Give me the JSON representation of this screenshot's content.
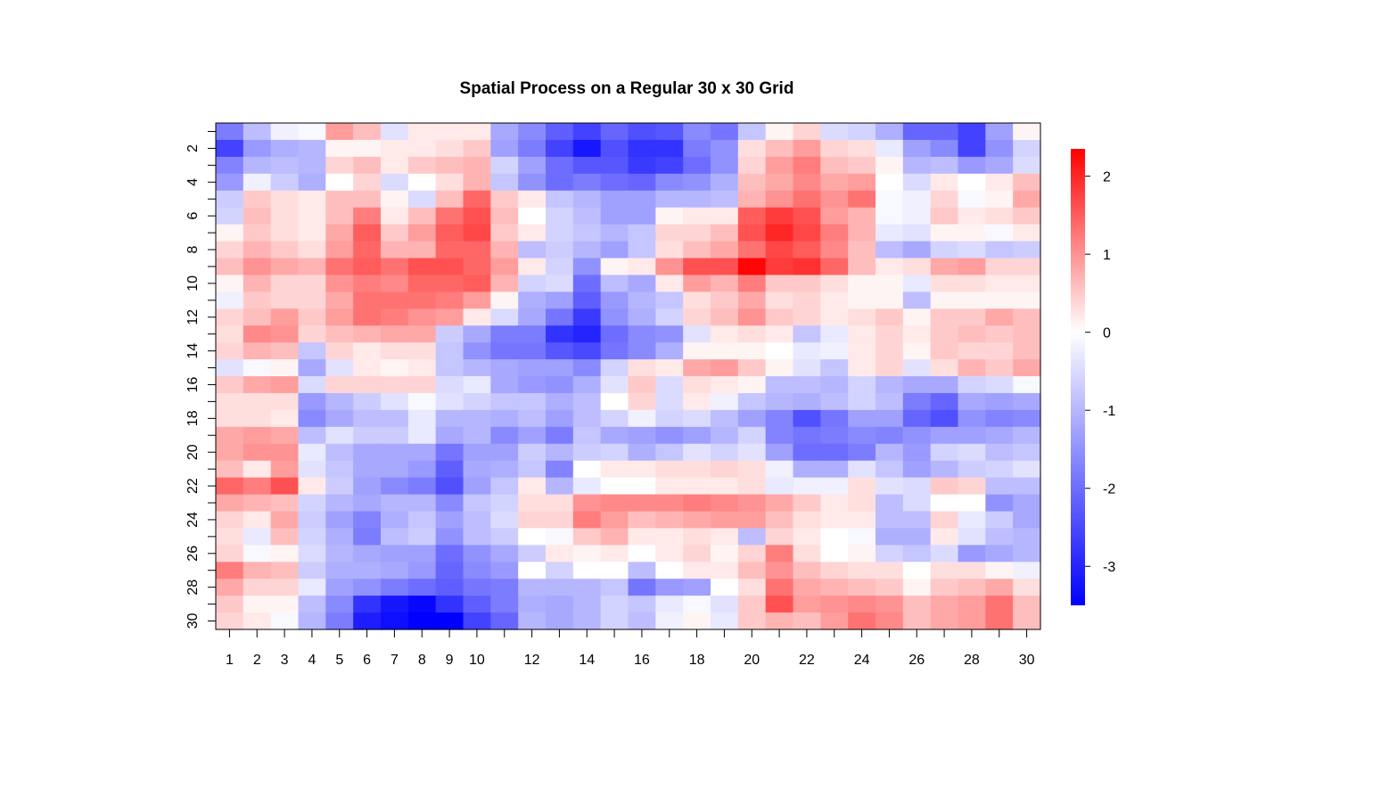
{
  "chart_data": {
    "type": "heatmap",
    "title": "Spatial Process on a Regular 30 x 30 Grid",
    "xlabel": "",
    "ylabel": "",
    "x_tick_labels": [
      "1",
      "2",
      "3",
      "4",
      "5",
      "6",
      "7",
      "8",
      "9",
      "10",
      "12",
      "14",
      "16",
      "18",
      "20",
      "22",
      "24",
      "26",
      "28",
      "30"
    ],
    "y_tick_labels": [
      "2",
      "4",
      "6",
      "8",
      "10",
      "12",
      "14",
      "16",
      "18",
      "20",
      "22",
      "24",
      "26",
      "28",
      "30"
    ],
    "colorbar": {
      "ticks": [
        -3,
        -2,
        -1,
        0,
        1,
        2
      ],
      "range": [
        -3.5,
        2.35
      ],
      "palette": [
        "#0000ff",
        "#ffffff",
        "#ff0000"
      ]
    },
    "legend_position": "right",
    "grid": false,
    "rows": 30,
    "cols": 30,
    "row_order": "row 1 at top, row 30 at bottom",
    "values": [
      [
        -1.8,
        -0.9,
        -0.2,
        -0.1,
        0.9,
        0.6,
        -0.4,
        0.2,
        0.2,
        0.2,
        -1.2,
        -1.6,
        -2.2,
        -2.6,
        -2.1,
        -2.4,
        -2.3,
        -1.6,
        -1.9,
        -0.8,
        0.1,
        0.4,
        -0.5,
        -0.6,
        -1.1,
        -2.1,
        -2.1,
        -2.6,
        -1.3,
        0.1
      ],
      [
        -2.6,
        -1.4,
        -1.1,
        -1.0,
        0.1,
        0.1,
        0.2,
        0.2,
        0.3,
        0.5,
        -1.3,
        -1.8,
        -2.6,
        -3.2,
        -2.4,
        -2.8,
        -2.8,
        -1.8,
        -1.5,
        0.3,
        0.6,
        0.9,
        0.4,
        0.3,
        -0.3,
        -1.3,
        -1.6,
        -2.6,
        -1.5,
        -0.6
      ],
      [
        -1.7,
        -1.0,
        -0.9,
        -1.0,
        0.4,
        0.6,
        0.2,
        0.5,
        0.6,
        0.7,
        -0.6,
        -1.3,
        -2.0,
        -2.3,
        -2.3,
        -2.7,
        -2.6,
        -2.0,
        -1.5,
        0.4,
        0.9,
        1.2,
        0.6,
        0.5,
        0.1,
        -1.0,
        -0.9,
        -1.4,
        -1.2,
        -0.5
      ],
      [
        -1.4,
        -0.2,
        -0.7,
        -1.1,
        0.0,
        0.4,
        -0.5,
        0.0,
        0.3,
        0.7,
        -0.8,
        -1.5,
        -2.0,
        -1.8,
        -2.0,
        -2.1,
        -1.6,
        -1.5,
        -1.1,
        0.6,
        0.8,
        1.1,
        0.8,
        0.9,
        0.0,
        -0.5,
        0.2,
        0.0,
        0.2,
        0.6
      ],
      [
        -0.7,
        0.5,
        0.3,
        0.2,
        0.6,
        0.6,
        0.1,
        -0.5,
        0.6,
        1.4,
        0.5,
        0.2,
        -0.8,
        -1.0,
        -1.3,
        -1.3,
        -1.0,
        -1.0,
        -0.9,
        0.7,
        1.0,
        1.3,
        1.0,
        1.3,
        -0.1,
        -0.2,
        0.4,
        -0.1,
        0.1,
        0.8
      ],
      [
        -0.6,
        0.6,
        0.3,
        0.2,
        0.6,
        1.2,
        0.2,
        0.6,
        1.3,
        1.6,
        0.6,
        0.0,
        -0.6,
        -0.9,
        -1.3,
        -1.3,
        0.1,
        0.2,
        0.2,
        1.5,
        1.8,
        1.6,
        0.9,
        0.7,
        -0.1,
        -0.2,
        0.5,
        0.2,
        0.3,
        0.5
      ],
      [
        0.1,
        0.5,
        0.3,
        0.2,
        0.8,
        1.5,
        0.5,
        0.9,
        1.5,
        1.7,
        0.5,
        0.2,
        -0.6,
        -0.8,
        -1.0,
        -0.8,
        0.4,
        0.4,
        0.6,
        1.6,
        2.0,
        1.7,
        1.2,
        0.7,
        -0.3,
        -0.4,
        0.1,
        0.1,
        -0.1,
        0.2
      ],
      [
        0.4,
        0.7,
        0.5,
        0.3,
        0.9,
        1.4,
        0.7,
        0.7,
        1.4,
        1.4,
        0.7,
        -0.9,
        -0.7,
        -1.0,
        -1.3,
        -0.8,
        0.3,
        0.6,
        0.8,
        1.3,
        1.7,
        1.5,
        1.1,
        0.6,
        -0.9,
        -1.2,
        -0.6,
        -0.5,
        -0.8,
        -0.7
      ],
      [
        0.6,
        1.0,
        0.8,
        0.7,
        1.3,
        1.5,
        1.3,
        1.6,
        1.6,
        1.4,
        0.9,
        0.2,
        -0.6,
        -1.5,
        0.1,
        0.2,
        1.0,
        1.6,
        1.6,
        2.3,
        1.8,
        1.9,
        1.4,
        0.6,
        0.2,
        0.3,
        0.8,
        0.9,
        0.4,
        0.4
      ],
      [
        0.1,
        0.7,
        0.4,
        0.4,
        1.0,
        1.2,
        1.1,
        1.4,
        1.4,
        1.5,
        0.7,
        -0.6,
        -0.5,
        -2.0,
        -0.9,
        -1.2,
        0.2,
        0.9,
        0.7,
        1.2,
        0.5,
        0.5,
        0.3,
        0.1,
        0.1,
        -0.3,
        0.3,
        0.3,
        0.2,
        0.2
      ],
      [
        -0.2,
        0.5,
        0.4,
        0.4,
        0.8,
        1.3,
        1.3,
        1.3,
        1.2,
        0.9,
        0.1,
        -1.1,
        -1.3,
        -2.2,
        -1.4,
        -1.0,
        -0.8,
        0.3,
        0.5,
        0.8,
        0.3,
        0.4,
        0.2,
        0.1,
        0.1,
        -0.9,
        0.1,
        0.1,
        0.1,
        0.1
      ],
      [
        0.4,
        0.6,
        0.9,
        0.5,
        0.9,
        1.3,
        1.2,
        1.0,
        0.9,
        0.2,
        -0.5,
        -1.2,
        -1.9,
        -2.7,
        -1.5,
        -1.1,
        -0.6,
        0.4,
        0.6,
        1.0,
        0.5,
        0.4,
        0.2,
        0.3,
        0.5,
        0.1,
        0.5,
        0.5,
        0.8,
        0.6
      ],
      [
        0.3,
        1.1,
        1.0,
        0.4,
        0.6,
        0.7,
        0.8,
        0.8,
        -0.7,
        -1.2,
        -1.8,
        -1.8,
        -2.8,
        -3.0,
        -2.0,
        -1.6,
        -1.5,
        -0.4,
        0.2,
        0.3,
        0.2,
        -0.8,
        -0.3,
        0.2,
        0.4,
        0.2,
        0.5,
        0.6,
        0.5,
        0.6
      ],
      [
        0.4,
        0.7,
        0.6,
        -0.8,
        0.4,
        0.2,
        0.3,
        0.3,
        -0.8,
        -1.5,
        -1.9,
        -1.9,
        -2.3,
        -2.5,
        -1.9,
        -1.6,
        -1.1,
        0.1,
        0.1,
        0.1,
        0.0,
        -0.3,
        -0.2,
        0.2,
        0.4,
        0.1,
        0.5,
        0.4,
        0.4,
        0.6
      ],
      [
        -0.4,
        -0.1,
        0.1,
        -1.2,
        -0.4,
        0.2,
        0.1,
        0.2,
        -0.8,
        -1.0,
        -1.2,
        -1.3,
        -1.3,
        -1.6,
        -0.6,
        0.3,
        0.2,
        0.8,
        0.9,
        0.5,
        0.1,
        -0.4,
        -0.8,
        0.2,
        0.4,
        -0.4,
        0.3,
        0.7,
        0.5,
        0.8
      ],
      [
        0.5,
        0.8,
        0.9,
        -0.5,
        0.4,
        0.4,
        0.4,
        0.4,
        -0.5,
        -0.3,
        -1.2,
        -1.4,
        -1.5,
        -1.1,
        -0.4,
        0.5,
        -0.5,
        0.3,
        0.2,
        0.1,
        -0.9,
        -0.9,
        -1.0,
        -0.6,
        -1.0,
        -1.2,
        -1.2,
        -0.6,
        -0.5,
        -0.1
      ],
      [
        0.3,
        0.3,
        0.3,
        -1.4,
        -1.0,
        -0.7,
        -0.4,
        -0.1,
        -0.4,
        -0.6,
        -0.8,
        -0.8,
        -1.1,
        -0.9,
        0.0,
        0.4,
        -0.5,
        0.2,
        -0.2,
        -0.8,
        -1.0,
        -1.1,
        -0.9,
        -0.6,
        -0.9,
        -1.8,
        -2.1,
        -1.2,
        -1.3,
        -1.2
      ],
      [
        0.3,
        0.3,
        0.2,
        -1.6,
        -1.2,
        -0.9,
        -0.9,
        -0.3,
        -1.0,
        -1.0,
        -1.1,
        -0.9,
        -1.3,
        -0.9,
        -0.6,
        -0.2,
        -0.6,
        -0.5,
        -0.9,
        -1.3,
        -1.7,
        -2.4,
        -1.9,
        -1.3,
        -1.3,
        -2.1,
        -2.4,
        -1.5,
        -1.7,
        -1.6
      ],
      [
        0.8,
        0.9,
        0.8,
        -0.9,
        -0.4,
        -0.7,
        -0.7,
        -0.3,
        -1.2,
        -1.0,
        -1.6,
        -1.3,
        -1.8,
        -0.8,
        -1.2,
        -1.3,
        -1.5,
        -1.3,
        -1.0,
        -0.6,
        -1.7,
        -1.9,
        -1.8,
        -1.6,
        -1.7,
        -1.5,
        -1.3,
        -1.3,
        -1.2,
        -1.0
      ],
      [
        0.8,
        1.0,
        1.0,
        -0.3,
        -0.9,
        -1.2,
        -1.2,
        -1.2,
        -1.9,
        -1.3,
        -1.3,
        -0.7,
        -1.0,
        -0.7,
        -0.6,
        -1.1,
        -0.8,
        -0.4,
        -0.6,
        -0.4,
        -1.3,
        -2.0,
        -2.0,
        -1.8,
        -1.0,
        -1.4,
        -0.6,
        -0.5,
        -0.9,
        -0.8
      ],
      [
        0.6,
        0.2,
        0.9,
        -0.4,
        -0.8,
        -1.2,
        -1.2,
        -1.4,
        -2.2,
        -1.2,
        -1.1,
        -0.8,
        -1.7,
        0.0,
        0.2,
        0.2,
        0.3,
        0.3,
        0.4,
        0.3,
        -0.2,
        -1.1,
        -1.1,
        -0.4,
        -0.8,
        -1.3,
        -1.0,
        -0.7,
        -0.6,
        -0.4
      ],
      [
        1.4,
        1.2,
        1.6,
        0.2,
        -0.7,
        -1.3,
        -1.6,
        -1.8,
        -2.4,
        -1.3,
        -0.8,
        0.2,
        -1.0,
        -0.3,
        0.0,
        0.0,
        0.2,
        0.2,
        0.2,
        0.3,
        -0.3,
        -0.2,
        -0.2,
        0.3,
        -0.4,
        -0.5,
        0.5,
        0.4,
        -0.9,
        -0.9
      ],
      [
        0.8,
        0.7,
        0.6,
        -0.6,
        -1.0,
        -1.2,
        -1.0,
        -1.0,
        -1.6,
        -0.8,
        -0.6,
        0.3,
        0.3,
        1.0,
        1.1,
        1.1,
        1.1,
        1.2,
        1.1,
        1.0,
        0.8,
        0.5,
        0.2,
        0.3,
        -0.9,
        -0.5,
        0.0,
        0.0,
        -1.5,
        -1.2
      ],
      [
        0.4,
        0.2,
        0.8,
        -0.7,
        -1.3,
        -1.7,
        -1.1,
        -0.8,
        -1.3,
        -0.9,
        -0.5,
        0.4,
        0.4,
        1.2,
        0.9,
        0.6,
        0.7,
        0.8,
        0.9,
        0.9,
        0.6,
        0.3,
        0.2,
        0.2,
        -0.9,
        -0.9,
        0.4,
        -0.3,
        -0.7,
        -1.2
      ],
      [
        0.3,
        -0.3,
        0.6,
        -0.6,
        -1.1,
        -1.8,
        -0.9,
        -0.7,
        -1.5,
        -0.9,
        -0.7,
        0.0,
        -0.1,
        0.5,
        0.7,
        0.2,
        0.2,
        0.3,
        0.2,
        -0.9,
        0.4,
        0.2,
        0.0,
        -0.1,
        -1.1,
        -1.1,
        0.2,
        -0.4,
        -0.9,
        -1.0
      ],
      [
        0.4,
        -0.1,
        0.1,
        -0.5,
        -1.0,
        -1.2,
        -1.3,
        -1.3,
        -2.0,
        -1.5,
        -1.2,
        -0.7,
        0.2,
        0.1,
        0.2,
        0.0,
        0.2,
        0.4,
        0.1,
        0.4,
        1.2,
        0.3,
        0.0,
        0.1,
        -0.6,
        -0.8,
        -0.5,
        -1.4,
        -1.2,
        -1.0
      ],
      [
        1.2,
        0.7,
        0.6,
        -0.7,
        -1.1,
        -1.1,
        -1.2,
        -1.4,
        -2.1,
        -1.6,
        -1.4,
        0.0,
        -0.6,
        0.0,
        0.0,
        -0.9,
        0.0,
        0.2,
        0.2,
        0.6,
        1.0,
        0.6,
        0.4,
        0.3,
        0.3,
        0.0,
        0.3,
        0.3,
        0.1,
        -0.2
      ],
      [
        0.8,
        0.4,
        0.4,
        -0.3,
        -1.3,
        -1.5,
        -1.8,
        -2.0,
        -2.2,
        -1.9,
        -1.8,
        -1.0,
        -1.0,
        -1.0,
        -0.8,
        -1.9,
        -1.4,
        -1.3,
        0.0,
        0.3,
        1.3,
        0.8,
        0.7,
        0.6,
        0.5,
        0.1,
        0.5,
        0.6,
        0.8,
        0.3
      ],
      [
        0.5,
        0.1,
        0.1,
        -0.9,
        -1.6,
        -2.8,
        -3.2,
        -3.4,
        -2.8,
        -2.2,
        -1.8,
        -1.1,
        -1.2,
        -1.0,
        -0.6,
        -0.8,
        -0.3,
        -0.1,
        -0.4,
        0.5,
        1.6,
        0.9,
        1.0,
        1.1,
        1.0,
        0.6,
        0.8,
        0.9,
        1.3,
        0.6
      ],
      [
        0.4,
        0.2,
        -0.1,
        -1.0,
        -1.8,
        -3.1,
        -3.3,
        -3.5,
        -3.5,
        -2.6,
        -2.1,
        -1.0,
        -1.2,
        -1.0,
        -0.6,
        -0.9,
        -0.2,
        0.1,
        -0.3,
        0.5,
        0.7,
        0.6,
        0.9,
        1.3,
        1.1,
        0.6,
        0.8,
        0.9,
        1.3,
        0.6
      ]
    ]
  }
}
